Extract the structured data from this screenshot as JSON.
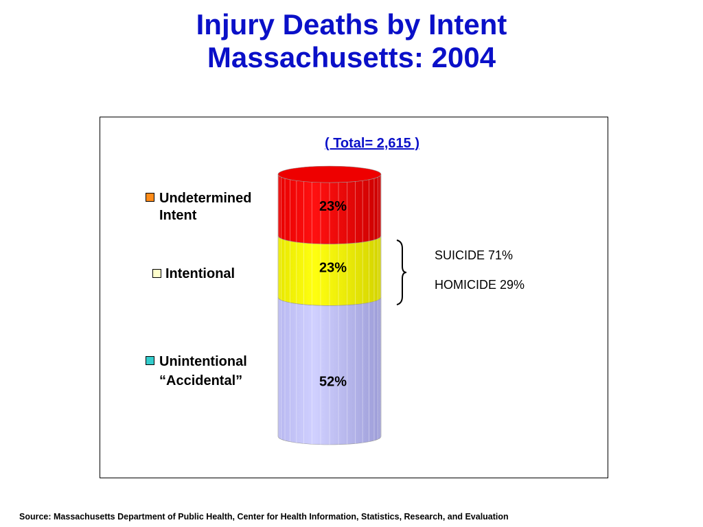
{
  "title": {
    "line1": "Injury Deaths by Intent",
    "line2": "Massachusetts: 2004"
  },
  "total_label": "( Total= 2,615 )",
  "legend": [
    {
      "line1": "Undetermined",
      "line2": "Intent",
      "color": "#ff8c1a"
    },
    {
      "line1": "Intentional",
      "line2": "",
      "color": "#ffffcc"
    },
    {
      "line1": "Unintentional",
      "line2": "“Accidental”",
      "color": "#33cccc"
    }
  ],
  "side_notes": {
    "suicide": "SUICIDE  71%",
    "homicide": "HOMICIDE  29%"
  },
  "source": "Source:  Massachusetts Department of Public Health, Center for Health Information, Statistics, Research, and Evaluation",
  "chart_data": {
    "type": "bar",
    "subtype": "stacked-cylinder",
    "categories": [
      "Massachusetts 2004"
    ],
    "series": [
      {
        "name": "Unintentional “Accidental”",
        "values": [
          52
        ],
        "label": "52%",
        "color": "#c8c8ff"
      },
      {
        "name": "Intentional",
        "values": [
          23
        ],
        "label": "23%",
        "color": "#ffff00"
      },
      {
        "name": "Undetermined Intent",
        "values": [
          23
        ],
        "label": "23%",
        "color": "#ff0000"
      }
    ],
    "total": 2615,
    "legend_position": "left"
  }
}
